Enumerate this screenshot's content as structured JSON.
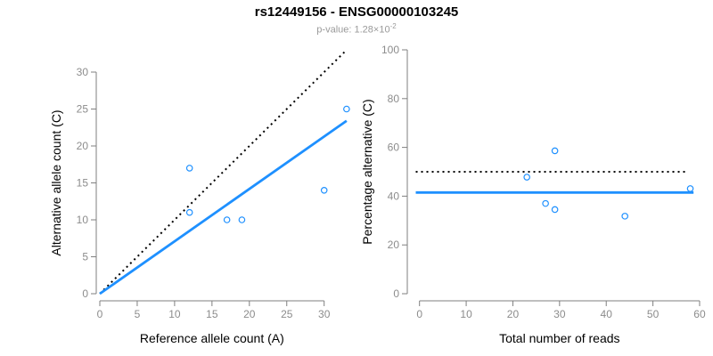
{
  "header": {
    "title": "rs12449156 - ENSG00000103245",
    "subtitle_prefix": "p-value: 1.28×10",
    "subtitle_exponent": "-2"
  },
  "colors": {
    "accent_blue": "#1E90FF",
    "line_black": "#000000",
    "axis_gray": "#7f7f7f",
    "tick_label_gray": "#8c8c8c",
    "axis_title_black": "#000000"
  },
  "chart_data": [
    {
      "type": "scatter",
      "name": "allele-counts-plot",
      "xlabel": "Reference allele count (A)",
      "ylabel": "Alternative allele count (C)",
      "xlim": [
        0,
        33
      ],
      "ylim": [
        0,
        33
      ],
      "xticks": [
        0,
        5,
        10,
        15,
        20,
        25,
        30
      ],
      "yticks": [
        0,
        5,
        10,
        15,
        20,
        25,
        30
      ],
      "grid": false,
      "legend": "none",
      "points": [
        [
          12,
          17
        ],
        [
          12,
          11
        ],
        [
          17,
          10
        ],
        [
          19,
          10
        ],
        [
          30,
          14
        ],
        [
          33,
          25
        ]
      ],
      "lines": [
        {
          "name": "identity-line",
          "style": "dotted",
          "color": "#000000",
          "from": [
            0,
            0
          ],
          "to": [
            33,
            33
          ]
        },
        {
          "name": "fit-line",
          "style": "solid",
          "color": "#1E90FF",
          "from": [
            0,
            0
          ],
          "to": [
            33,
            23.4
          ]
        }
      ]
    },
    {
      "type": "scatter",
      "name": "percentage-plot",
      "xlabel": "Total number of reads",
      "ylabel": "Percentage alternative (C)",
      "xlim": [
        0,
        60
      ],
      "ylim": [
        0,
        100
      ],
      "xticks": [
        0,
        10,
        20,
        30,
        40,
        50,
        60
      ],
      "yticks": [
        0,
        20,
        40,
        60,
        80,
        100
      ],
      "grid": false,
      "legend": "none",
      "points": [
        [
          23,
          47.8
        ],
        [
          29,
          58.6
        ],
        [
          27,
          37.0
        ],
        [
          29,
          34.5
        ],
        [
          44,
          31.8
        ],
        [
          58,
          43.1
        ]
      ],
      "lines": [
        {
          "name": "null-line",
          "style": "dotted",
          "color": "#000000",
          "from": [
            -0.8,
            50
          ],
          "to": [
            57,
            50
          ]
        },
        {
          "name": "mean-line",
          "style": "solid",
          "color": "#1E90FF",
          "from": [
            -0.8,
            41.5
          ],
          "to": [
            58.7,
            41.5
          ]
        }
      ]
    }
  ]
}
